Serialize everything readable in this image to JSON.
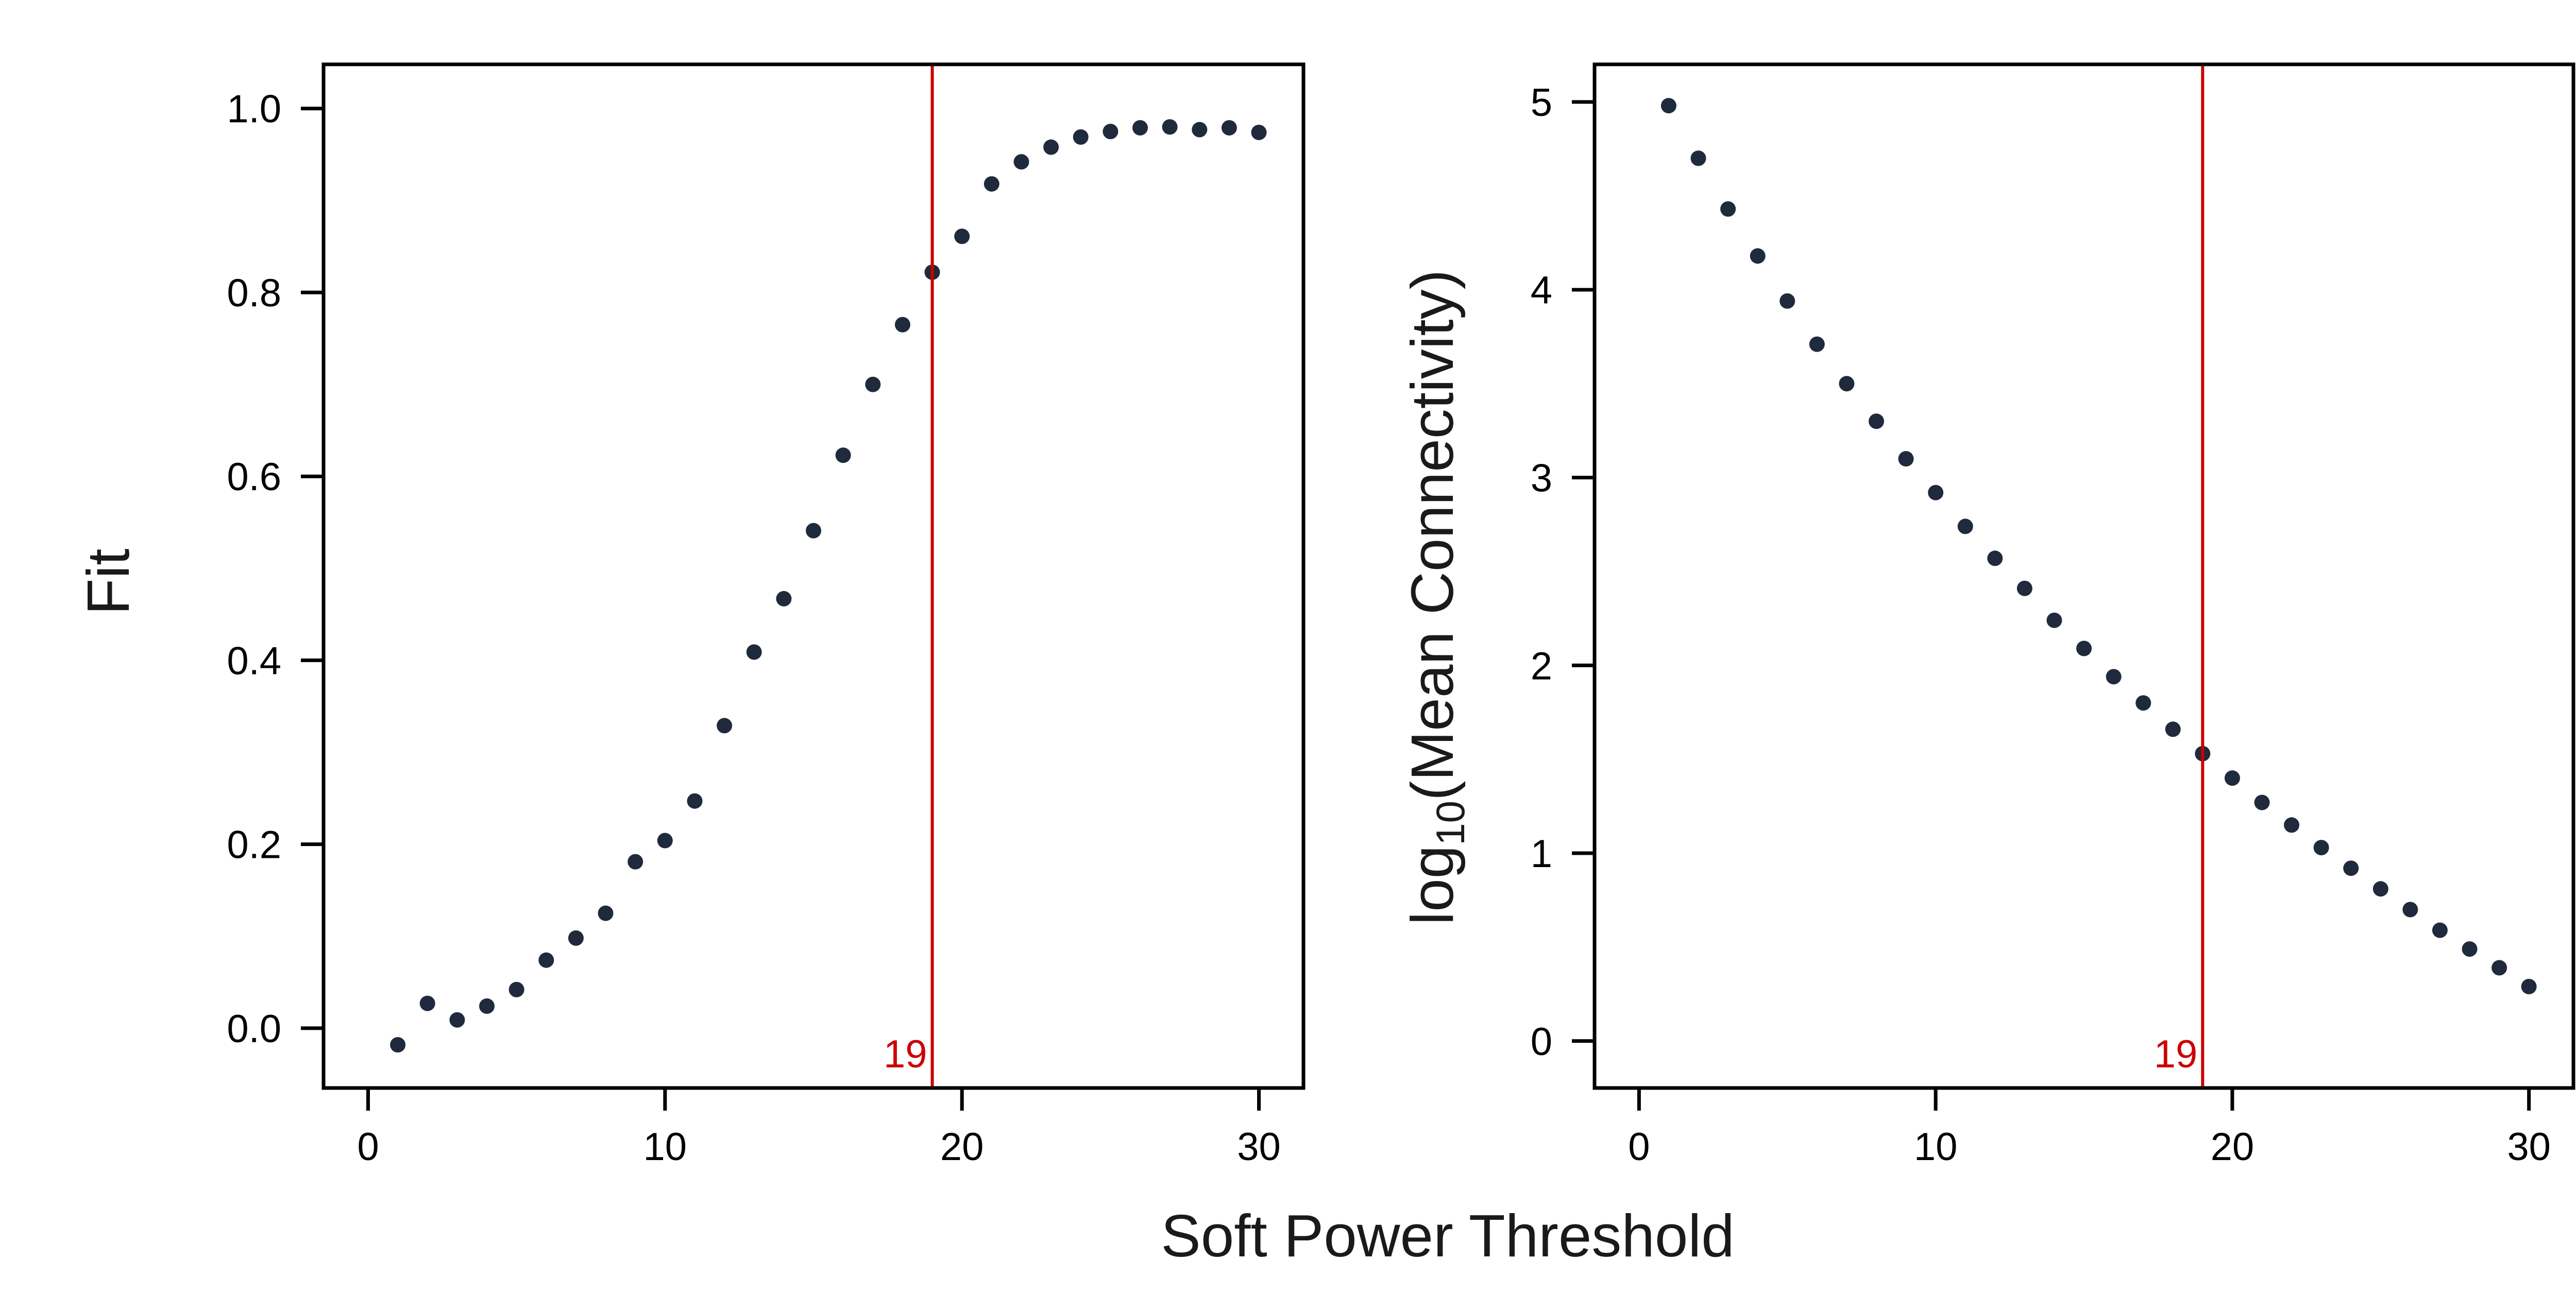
{
  "chart_data": {
    "type": "scatter",
    "shared_xlabel": "Soft Power Threshold",
    "marker_color": "#1f2a3c",
    "threshold_color": "#cc0000",
    "threshold": 19,
    "threshold_label": "19",
    "panels": [
      {
        "ylabel": "Fit",
        "xlim": [
          -1.5,
          31.5
        ],
        "ylim": [
          -0.065,
          1.048
        ],
        "xticks": [
          0,
          10,
          20,
          30
        ],
        "xtick_labels": [
          "0",
          "10",
          "20",
          "30"
        ],
        "yticks": [
          0.0,
          0.2,
          0.4,
          0.6,
          0.8,
          1.0
        ],
        "ytick_labels": [
          "0.0",
          "0.2",
          "0.4",
          "0.6",
          "0.8",
          "1.0"
        ],
        "x": [
          1,
          2,
          3,
          4,
          5,
          6,
          7,
          8,
          9,
          10,
          11,
          12,
          13,
          14,
          15,
          16,
          17,
          18,
          19,
          20,
          21,
          22,
          23,
          24,
          25,
          26,
          27,
          28,
          29,
          30
        ],
        "y": [
          -0.018,
          0.027,
          0.009,
          0.024,
          0.042,
          0.074,
          0.098,
          0.125,
          0.181,
          0.204,
          0.247,
          0.329,
          0.409,
          0.467,
          0.541,
          0.623,
          0.7,
          0.765,
          0.822,
          0.861,
          0.918,
          0.942,
          0.958,
          0.969,
          0.975,
          0.979,
          0.98,
          0.977,
          0.979,
          0.974
        ]
      },
      {
        "ylabel_prefix": "log",
        "ylabel_sub": "10",
        "ylabel_main": "(Mean Connectivity)",
        "xlim": [
          -1.5,
          31.5
        ],
        "ylim": [
          -0.25,
          5.2
        ],
        "xticks": [
          0,
          10,
          20,
          30
        ],
        "xtick_labels": [
          "0",
          "10",
          "20",
          "30"
        ],
        "yticks": [
          0,
          1,
          2,
          3,
          4,
          5
        ],
        "ytick_labels": [
          "0",
          "1",
          "2",
          "3",
          "4",
          "5"
        ],
        "x": [
          1,
          2,
          3,
          4,
          5,
          6,
          7,
          8,
          9,
          10,
          11,
          12,
          13,
          14,
          15,
          16,
          17,
          18,
          19,
          20,
          21,
          22,
          23,
          24,
          25,
          26,
          27,
          28,
          29,
          30
        ],
        "y": [
          4.98,
          4.7,
          4.43,
          4.18,
          3.94,
          3.71,
          3.5,
          3.3,
          3.1,
          2.92,
          2.74,
          2.57,
          2.41,
          2.24,
          2.09,
          1.94,
          1.8,
          1.66,
          1.53,
          1.4,
          1.27,
          1.15,
          1.03,
          0.92,
          0.81,
          0.7,
          0.59,
          0.49,
          0.39,
          0.29
        ]
      }
    ]
  }
}
